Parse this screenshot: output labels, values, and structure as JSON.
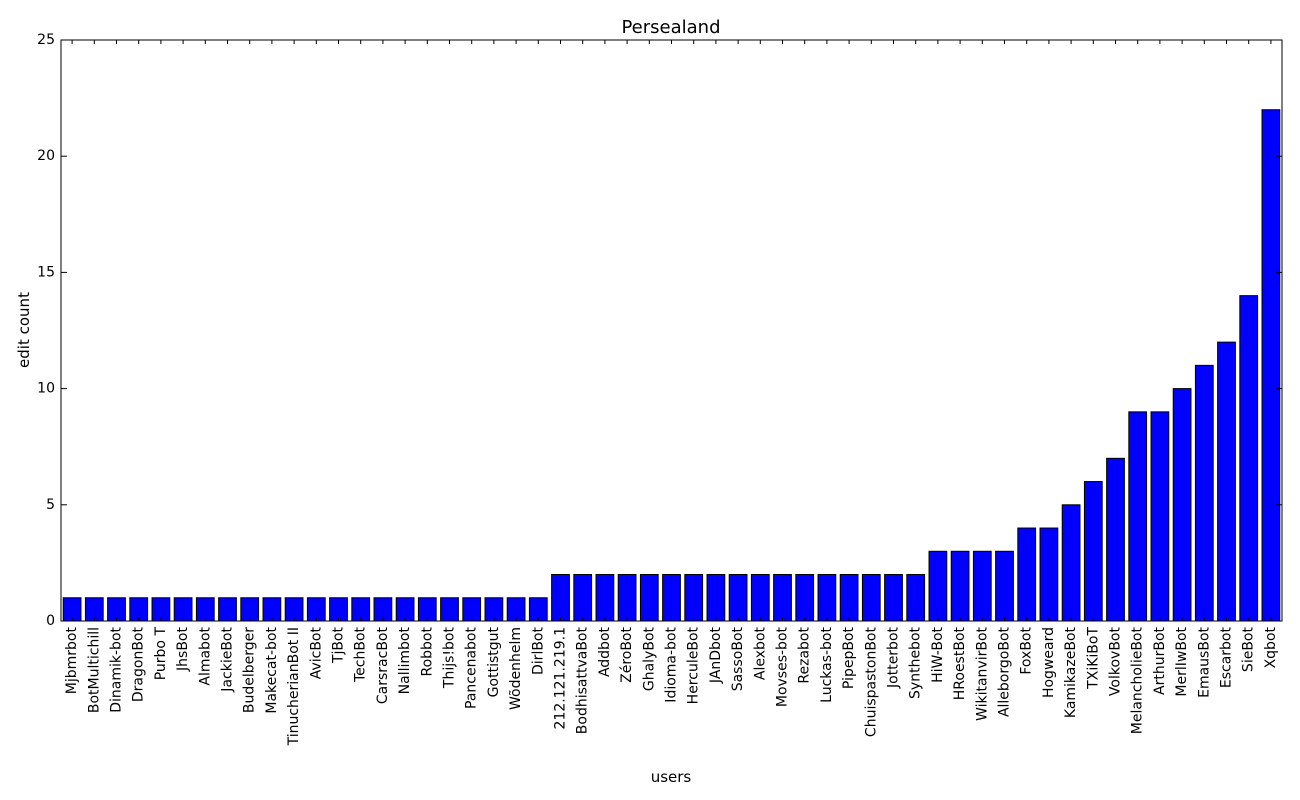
{
  "chart_data": {
    "type": "bar",
    "title": "Persealand",
    "xlabel": "users",
    "ylabel": "edit count",
    "ylim": [
      0,
      25
    ],
    "yticks": [
      0,
      5,
      10,
      15,
      20,
      25
    ],
    "grid": false,
    "bar_color": "#0000ff",
    "categories": [
      "Mjbmrbot",
      "BotMultichill",
      "Dinamik-bot",
      "DragonBot",
      "Purbo T",
      "JhsBot",
      "Almabot",
      "JackieBot",
      "Budelberger",
      "Makecat-bot",
      "TinucherianBot II",
      "AvicBot",
      "TjBot",
      "TechBot",
      "CarsracBot",
      "Nallimbot",
      "Robbot",
      "Thijs!bot",
      "Pancenabot",
      "Gottistgut",
      "Wõdenhelm",
      "DirlBot",
      "212.121.219.1",
      "BodhisattvaBot",
      "Addbot",
      "ZéroBot",
      "GhalyBot",
      "Idioma-bot",
      "HerculeBot",
      "JAnDbot",
      "SassoBot",
      "Alexbot",
      "Movses-bot",
      "Rezabot",
      "Luckas-bot",
      "PipepBot",
      "ChuispastonBot",
      "Jotterbot",
      "Synthebot",
      "HiW-Bot",
      "HRoestBot",
      "WikitanvirBot",
      "AlleborgoBot",
      "FoxBot",
      "Hogweard",
      "KamikazeBot",
      "TXiKiBoT",
      "VolkovBot",
      "MelancholieBot",
      "ArthurBot",
      "MerlIwBot",
      "EmausBot",
      "Escarbot",
      "SieBot",
      "Xqbot"
    ],
    "values": [
      1,
      1,
      1,
      1,
      1,
      1,
      1,
      1,
      1,
      1,
      1,
      1,
      1,
      1,
      1,
      1,
      1,
      1,
      1,
      1,
      1,
      1,
      2,
      2,
      2,
      2,
      2,
      2,
      2,
      2,
      2,
      2,
      2,
      2,
      2,
      2,
      2,
      2,
      2,
      3,
      3,
      3,
      3,
      4,
      4,
      5,
      6,
      7,
      9,
      9,
      10,
      11,
      12,
      14,
      22
    ]
  }
}
